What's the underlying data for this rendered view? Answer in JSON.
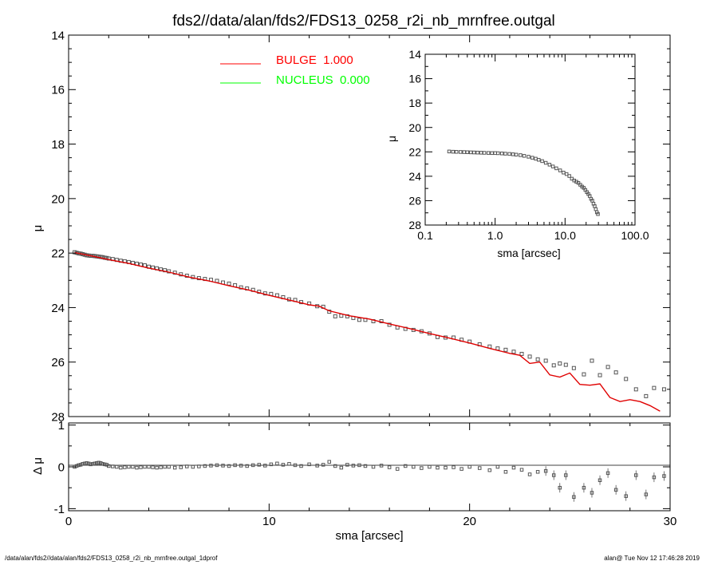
{
  "chart_data": [
    {
      "type": "scatter",
      "title": "fds2//data/alan/fds2/FDS13_0258_r2i_nb_mrnfree.outgal",
      "xlabel": "",
      "ylabel": "μ",
      "xlim": [
        0,
        30
      ],
      "ylim": [
        28,
        14
      ],
      "y_inverted": true,
      "x_ticks": [
        0,
        10,
        20,
        30
      ],
      "y_ticks": [
        14,
        16,
        18,
        20,
        22,
        24,
        26,
        28
      ],
      "legend": {
        "placement": "top-center",
        "entries": [
          {
            "label": "BULGE  1.000",
            "color": "#ff0000"
          },
          {
            "label": "NUCLEUS  0.000",
            "color": "#00ff00"
          }
        ]
      },
      "series": [
        {
          "name": "BULGE  1.000",
          "kind": "line",
          "color": "#e00000",
          "x": [
            0.3,
            1,
            2,
            3,
            4,
            5,
            6,
            7,
            8,
            9,
            10,
            11,
            12,
            12.5,
            13,
            14,
            15,
            16,
            17,
            18,
            19,
            20,
            21,
            22,
            22.5,
            23,
            23.5,
            24,
            24.5,
            25,
            25.5,
            26,
            26.5,
            27,
            27.5,
            28,
            28.5,
            29,
            29.5
          ],
          "y": [
            21.98,
            22.08,
            22.24,
            22.38,
            22.55,
            22.7,
            22.88,
            23.02,
            23.2,
            23.36,
            23.55,
            23.72,
            23.9,
            23.95,
            24.12,
            24.3,
            24.42,
            24.6,
            24.77,
            24.95,
            25.12,
            25.3,
            25.5,
            25.68,
            25.75,
            26.05,
            26.0,
            26.47,
            26.55,
            26.4,
            26.82,
            26.85,
            26.8,
            27.3,
            27.45,
            27.38,
            27.45,
            27.6,
            27.8
          ]
        }
      ],
      "data_points": {
        "name": "data",
        "marker": "open-square",
        "color": "#555555",
        "x": [
          0.3,
          0.4,
          0.5,
          0.6,
          0.7,
          0.8,
          0.9,
          1.0,
          1.1,
          1.2,
          1.3,
          1.4,
          1.5,
          1.6,
          1.7,
          1.8,
          1.9,
          2.0,
          2.2,
          2.4,
          2.6,
          2.8,
          3.0,
          3.2,
          3.4,
          3.6,
          3.8,
          4.0,
          4.2,
          4.4,
          4.6,
          4.8,
          5.0,
          5.3,
          5.6,
          5.9,
          6.2,
          6.5,
          6.8,
          7.1,
          7.4,
          7.7,
          8.0,
          8.3,
          8.6,
          8.9,
          9.2,
          9.5,
          9.8,
          10.1,
          10.4,
          10.7,
          11.0,
          11.3,
          11.6,
          12.0,
          12.4,
          12.7,
          13.0,
          13.3,
          13.6,
          13.9,
          14.2,
          14.5,
          14.8,
          15.2,
          15.6,
          16.0,
          16.4,
          16.8,
          17.2,
          17.6,
          18.0,
          18.4,
          18.8,
          19.2,
          19.6,
          20.0,
          20.5,
          21.0,
          21.4,
          21.8,
          22.2,
          22.6,
          23.0,
          23.4,
          23.8,
          24.2,
          24.5,
          24.8,
          25.2,
          25.7,
          26.1,
          26.5,
          26.9,
          27.3,
          27.8,
          28.3,
          28.8,
          29.2,
          29.7
        ],
        "y": [
          21.97,
          21.99,
          22.01,
          22.02,
          22.04,
          22.06,
          22.08,
          22.09,
          22.1,
          22.1,
          22.11,
          22.12,
          22.13,
          22.14,
          22.15,
          22.17,
          22.18,
          22.2,
          22.22,
          22.25,
          22.28,
          22.3,
          22.33,
          22.36,
          22.39,
          22.42,
          22.45,
          22.5,
          22.53,
          22.56,
          22.6,
          22.63,
          22.67,
          22.72,
          22.78,
          22.83,
          22.88,
          22.92,
          22.95,
          22.98,
          23.02,
          23.08,
          23.12,
          23.18,
          23.26,
          23.3,
          23.35,
          23.42,
          23.48,
          23.5,
          23.55,
          23.62,
          23.7,
          23.72,
          23.8,
          23.85,
          23.95,
          23.97,
          24.15,
          24.32,
          24.3,
          24.32,
          24.38,
          24.45,
          24.45,
          24.5,
          24.5,
          24.63,
          24.73,
          24.78,
          24.82,
          24.87,
          24.95,
          25.08,
          25.1,
          25.1,
          25.18,
          25.25,
          25.35,
          25.43,
          25.5,
          25.55,
          25.62,
          25.7,
          25.8,
          25.9,
          25.95,
          26.12,
          26.05,
          26.1,
          26.22,
          26.45,
          25.95,
          26.48,
          26.18,
          26.38,
          26.62,
          27.0,
          27.25,
          26.95,
          27.0
        ]
      }
    },
    {
      "type": "scatter",
      "title": "",
      "xlabel": "sma [arcsec]",
      "ylabel": "Δ μ",
      "xlim": [
        0,
        30
      ],
      "ylim": [
        -1.05,
        1.05
      ],
      "x_ticks": [
        0,
        10,
        20,
        30
      ],
      "y_ticks": [
        1,
        0,
        -1
      ],
      "reference_line": 0,
      "data_points": {
        "name": "residual",
        "marker": "open-square",
        "color": "#555555",
        "x": [
          0.3,
          0.4,
          0.5,
          0.6,
          0.7,
          0.8,
          0.9,
          1.0,
          1.1,
          1.2,
          1.3,
          1.4,
          1.5,
          1.6,
          1.7,
          1.8,
          1.9,
          2.0,
          2.2,
          2.4,
          2.6,
          2.8,
          3.0,
          3.2,
          3.4,
          3.6,
          3.8,
          4.0,
          4.2,
          4.4,
          4.6,
          4.8,
          5.0,
          5.3,
          5.6,
          5.9,
          6.2,
          6.5,
          6.8,
          7.1,
          7.4,
          7.7,
          8.0,
          8.3,
          8.6,
          8.9,
          9.2,
          9.5,
          9.8,
          10.1,
          10.4,
          10.7,
          11.0,
          11.3,
          11.6,
          12.0,
          12.4,
          12.7,
          13.0,
          13.3,
          13.6,
          13.9,
          14.2,
          14.5,
          14.8,
          15.2,
          15.6,
          16.0,
          16.4,
          16.8,
          17.2,
          17.6,
          18.0,
          18.4,
          18.8,
          19.2,
          19.6,
          20.0,
          20.5,
          21.0,
          21.4,
          21.8,
          22.2,
          22.6,
          23.0,
          23.4,
          23.8,
          24.2,
          24.5,
          24.8,
          25.2,
          25.7,
          26.1,
          26.5,
          26.9,
          27.3,
          27.8,
          28.3,
          28.8,
          29.2,
          29.7
        ],
        "y": [
          0.0,
          0.02,
          0.04,
          0.05,
          0.07,
          0.08,
          0.09,
          0.08,
          0.06,
          0.07,
          0.08,
          0.09,
          0.1,
          0.09,
          0.07,
          0.06,
          0.05,
          0.02,
          0.01,
          0.0,
          -0.02,
          -0.01,
          0.0,
          0.0,
          -0.02,
          -0.01,
          0.0,
          0.0,
          -0.01,
          -0.02,
          -0.01,
          0.0,
          0.0,
          -0.02,
          -0.01,
          0.01,
          0.0,
          0.01,
          0.02,
          0.03,
          0.04,
          0.03,
          0.02,
          0.04,
          0.03,
          0.02,
          0.04,
          0.05,
          0.03,
          0.06,
          0.08,
          0.05,
          0.07,
          0.04,
          0.02,
          0.06,
          0.03,
          0.05,
          0.12,
          0.02,
          -0.02,
          0.05,
          0.03,
          0.04,
          0.02,
          0.0,
          0.03,
          -0.01,
          -0.05,
          0.02,
          0.0,
          -0.03,
          0.0,
          -0.02,
          -0.02,
          -0.01,
          -0.05,
          0.0,
          -0.03,
          -0.08,
          0.0,
          -0.12,
          -0.02,
          -0.07,
          -0.18,
          -0.12,
          -0.1,
          -0.2,
          -0.5,
          -0.2,
          -0.72,
          -0.5,
          -0.62,
          -0.32,
          -0.15,
          -0.55,
          -0.7,
          -0.2,
          -0.66,
          -0.25,
          -0.22
        ]
      }
    },
    {
      "type": "scatter",
      "title": "",
      "xlabel": "sma [arcsec]",
      "ylabel": "μ",
      "x_scale": "log",
      "xlim": [
        0.1,
        100
      ],
      "ylim": [
        28,
        14
      ],
      "y_inverted": true,
      "x_ticks": [
        0.1,
        1,
        10,
        100
      ],
      "x_tick_labels": [
        "0.1",
        "1.0",
        "10.0",
        "100.0"
      ],
      "y_ticks": [
        14,
        16,
        18,
        20,
        22,
        24,
        26,
        28
      ],
      "data_points": {
        "name": "data",
        "marker": "open-square",
        "color": "#555555",
        "x": [
          0.22,
          0.25,
          0.28,
          0.32,
          0.36,
          0.4,
          0.45,
          0.5,
          0.56,
          0.63,
          0.7,
          0.8,
          0.9,
          1.0,
          1.1,
          1.25,
          1.4,
          1.6,
          1.8,
          2.0,
          2.3,
          2.6,
          3.0,
          3.4,
          3.8,
          4.2,
          4.7,
          5.3,
          6.0,
          6.7,
          7.5,
          8.5,
          9.5,
          10.5,
          11.5,
          12.5,
          13.5,
          14.5,
          15.5,
          16.5,
          17.5,
          18.5,
          19.5,
          20.5,
          21.5,
          22.5,
          23.5,
          24.5,
          25.5,
          26.5,
          27.5,
          28.5,
          29.5
        ],
        "y": [
          21.97,
          21.99,
          22.0,
          22.01,
          22.02,
          22.03,
          22.04,
          22.05,
          22.06,
          22.07,
          22.08,
          22.09,
          22.1,
          22.1,
          22.11,
          22.13,
          22.15,
          22.17,
          22.2,
          22.23,
          22.27,
          22.33,
          22.4,
          22.48,
          22.56,
          22.65,
          22.76,
          22.9,
          23.05,
          23.2,
          23.35,
          23.52,
          23.7,
          23.82,
          23.98,
          24.2,
          24.35,
          24.45,
          24.55,
          24.7,
          24.85,
          24.95,
          25.12,
          25.3,
          25.45,
          25.62,
          25.85,
          26.0,
          26.25,
          26.45,
          26.7,
          26.95,
          27.1
        ]
      }
    }
  ],
  "footer": {
    "left": "/data/alan/fds2//data/alan/fds2/FDS13_0258_r2i_nb_mrnfree.outgal_1dprof",
    "right": "alan@  Tue Nov 12 17:46:28 2019"
  }
}
